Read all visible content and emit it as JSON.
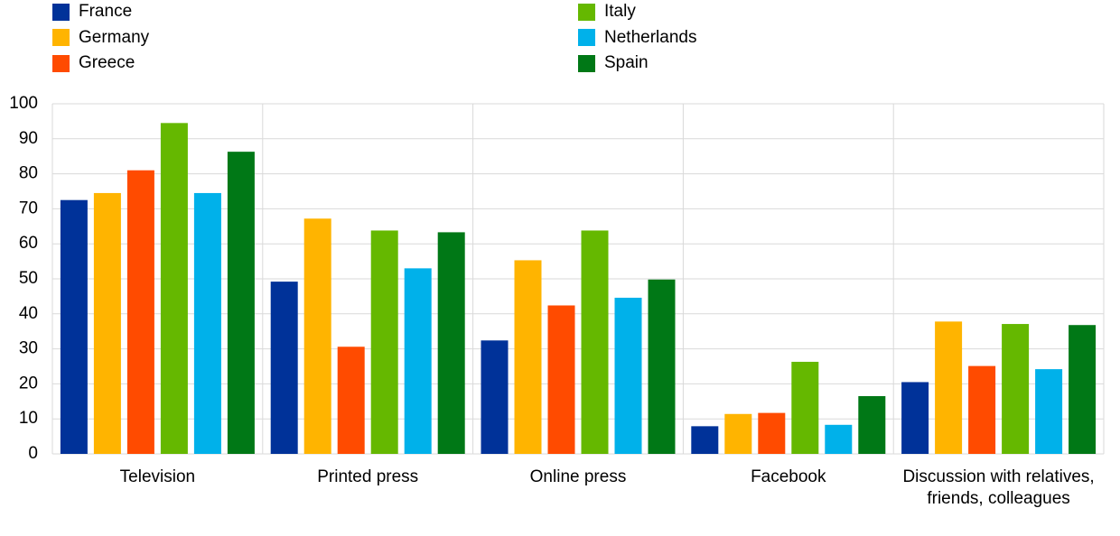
{
  "chart_data": {
    "type": "bar",
    "categories": [
      "Television",
      "Printed press",
      "Online press",
      "Facebook",
      "Discussion with relatives, friends, colleagues"
    ],
    "series": [
      {
        "name": "France",
        "color": "#003299",
        "values": [
          72.5,
          49.2,
          32.4,
          7.9,
          20.5
        ]
      },
      {
        "name": "Germany",
        "color": "#ffb400",
        "values": [
          74.5,
          67.2,
          55.3,
          11.4,
          37.8
        ]
      },
      {
        "name": "Greece",
        "color": "#ff4b00",
        "values": [
          81,
          30.6,
          42.4,
          11.7,
          25.1
        ]
      },
      {
        "name": "Italy",
        "color": "#65b800",
        "values": [
          94.5,
          63.8,
          63.8,
          26.3,
          37.1
        ]
      },
      {
        "name": "Netherlands",
        "color": "#00b1ea",
        "values": [
          74.5,
          53,
          44.6,
          8.3,
          24.2
        ]
      },
      {
        "name": "Spain",
        "color": "#007816",
        "values": [
          86.3,
          63.3,
          49.8,
          16.5,
          36.8
        ]
      }
    ],
    "ylim": [
      0,
      100
    ],
    "yticks": [
      0,
      10,
      20,
      30,
      40,
      50,
      60,
      70,
      80,
      90,
      100
    ],
    "grid": true,
    "legend": "top"
  }
}
